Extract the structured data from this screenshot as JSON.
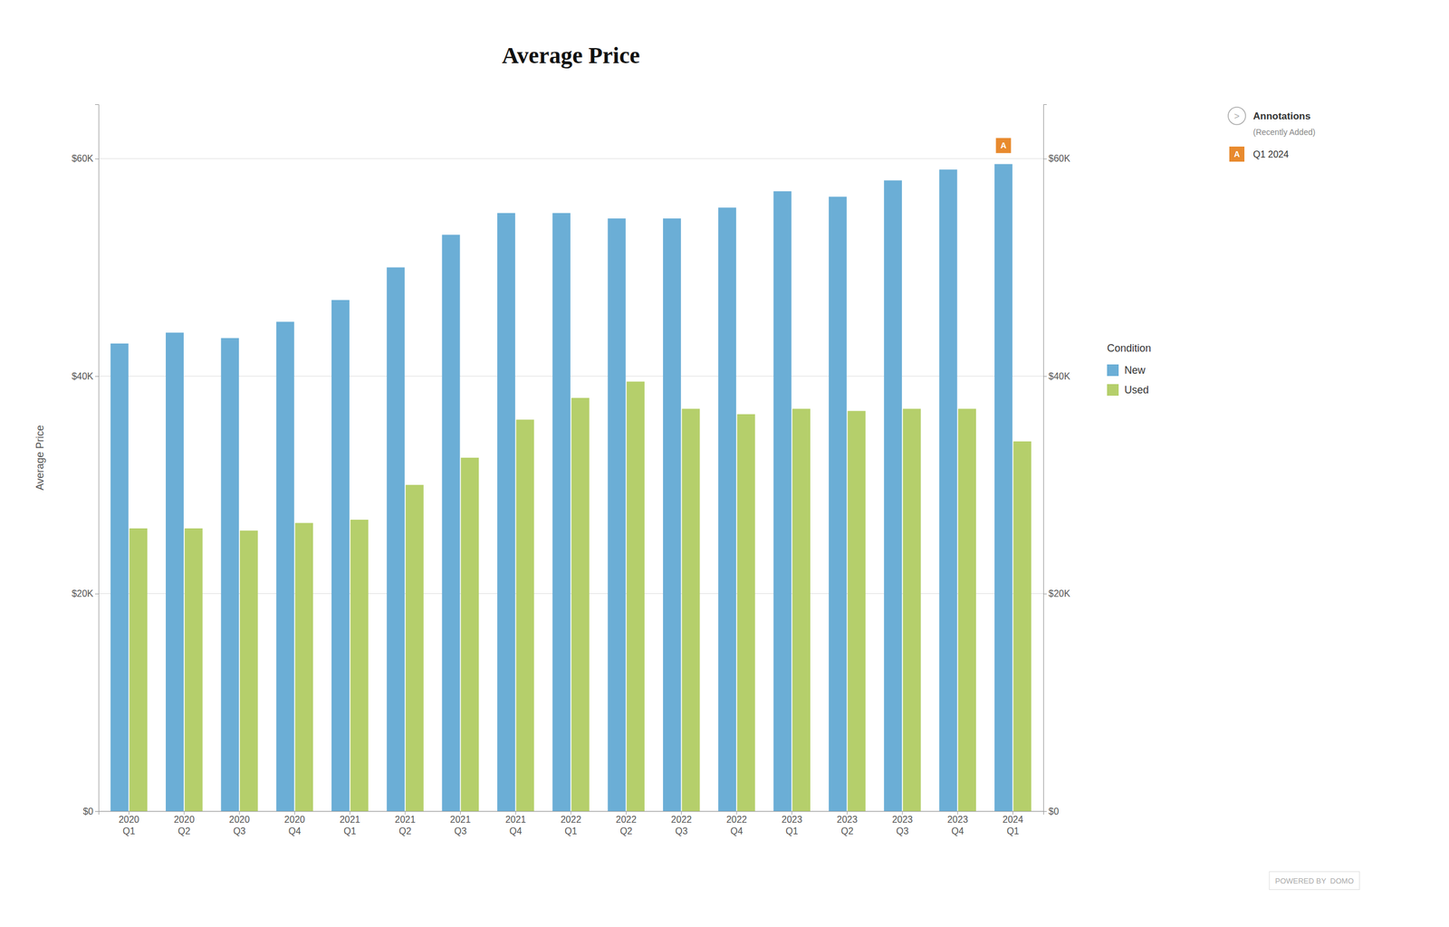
{
  "chart_data": {
    "type": "bar",
    "title": "Average Price",
    "ylabel": "Average Price",
    "categories": [
      "2020\nQ1",
      "2020\nQ2",
      "2020\nQ3",
      "2020\nQ4",
      "2021\nQ1",
      "2021\nQ2",
      "2021\nQ3",
      "2021\nQ4",
      "2022\nQ1",
      "2022\nQ2",
      "2022\nQ3",
      "2022\nQ4",
      "2023\nQ1",
      "2023\nQ2",
      "2023\nQ3",
      "2023\nQ4",
      "2024\nQ1"
    ],
    "series": [
      {
        "name": "New",
        "color": "#6baed6",
        "values": [
          43000,
          44000,
          43500,
          45000,
          47000,
          50000,
          53000,
          55000,
          55000,
          54500,
          54500,
          55500,
          57000,
          56500,
          58000,
          59000,
          59500
        ]
      },
      {
        "name": "Used",
        "color": "#b5cf6b",
        "values": [
          26000,
          26000,
          25800,
          26500,
          26800,
          30000,
          32500,
          36000,
          38000,
          39500,
          37000,
          36500,
          37000,
          36800,
          37000,
          37000,
          34000
        ]
      }
    ],
    "ylim": [
      0,
      65000
    ],
    "yticks": [
      {
        "value": 0,
        "label": "$0"
      },
      {
        "value": 20000,
        "label": "$20K"
      },
      {
        "value": 40000,
        "label": "$40K"
      },
      {
        "value": 60000,
        "label": "$60K"
      }
    ],
    "grid": true,
    "legend": "right",
    "legend_title": "Condition",
    "annotations": [
      {
        "text": "A",
        "category": "2024\nQ1",
        "series": "New",
        "color": "#e88a2e",
        "label": "Q1 2024"
      }
    ],
    "annotations_icon": ">",
    "annotations_title": "Annotations",
    "annotations_subtitle": "(Recently Added)",
    "footer": "POWERED BY  DOMO"
  }
}
